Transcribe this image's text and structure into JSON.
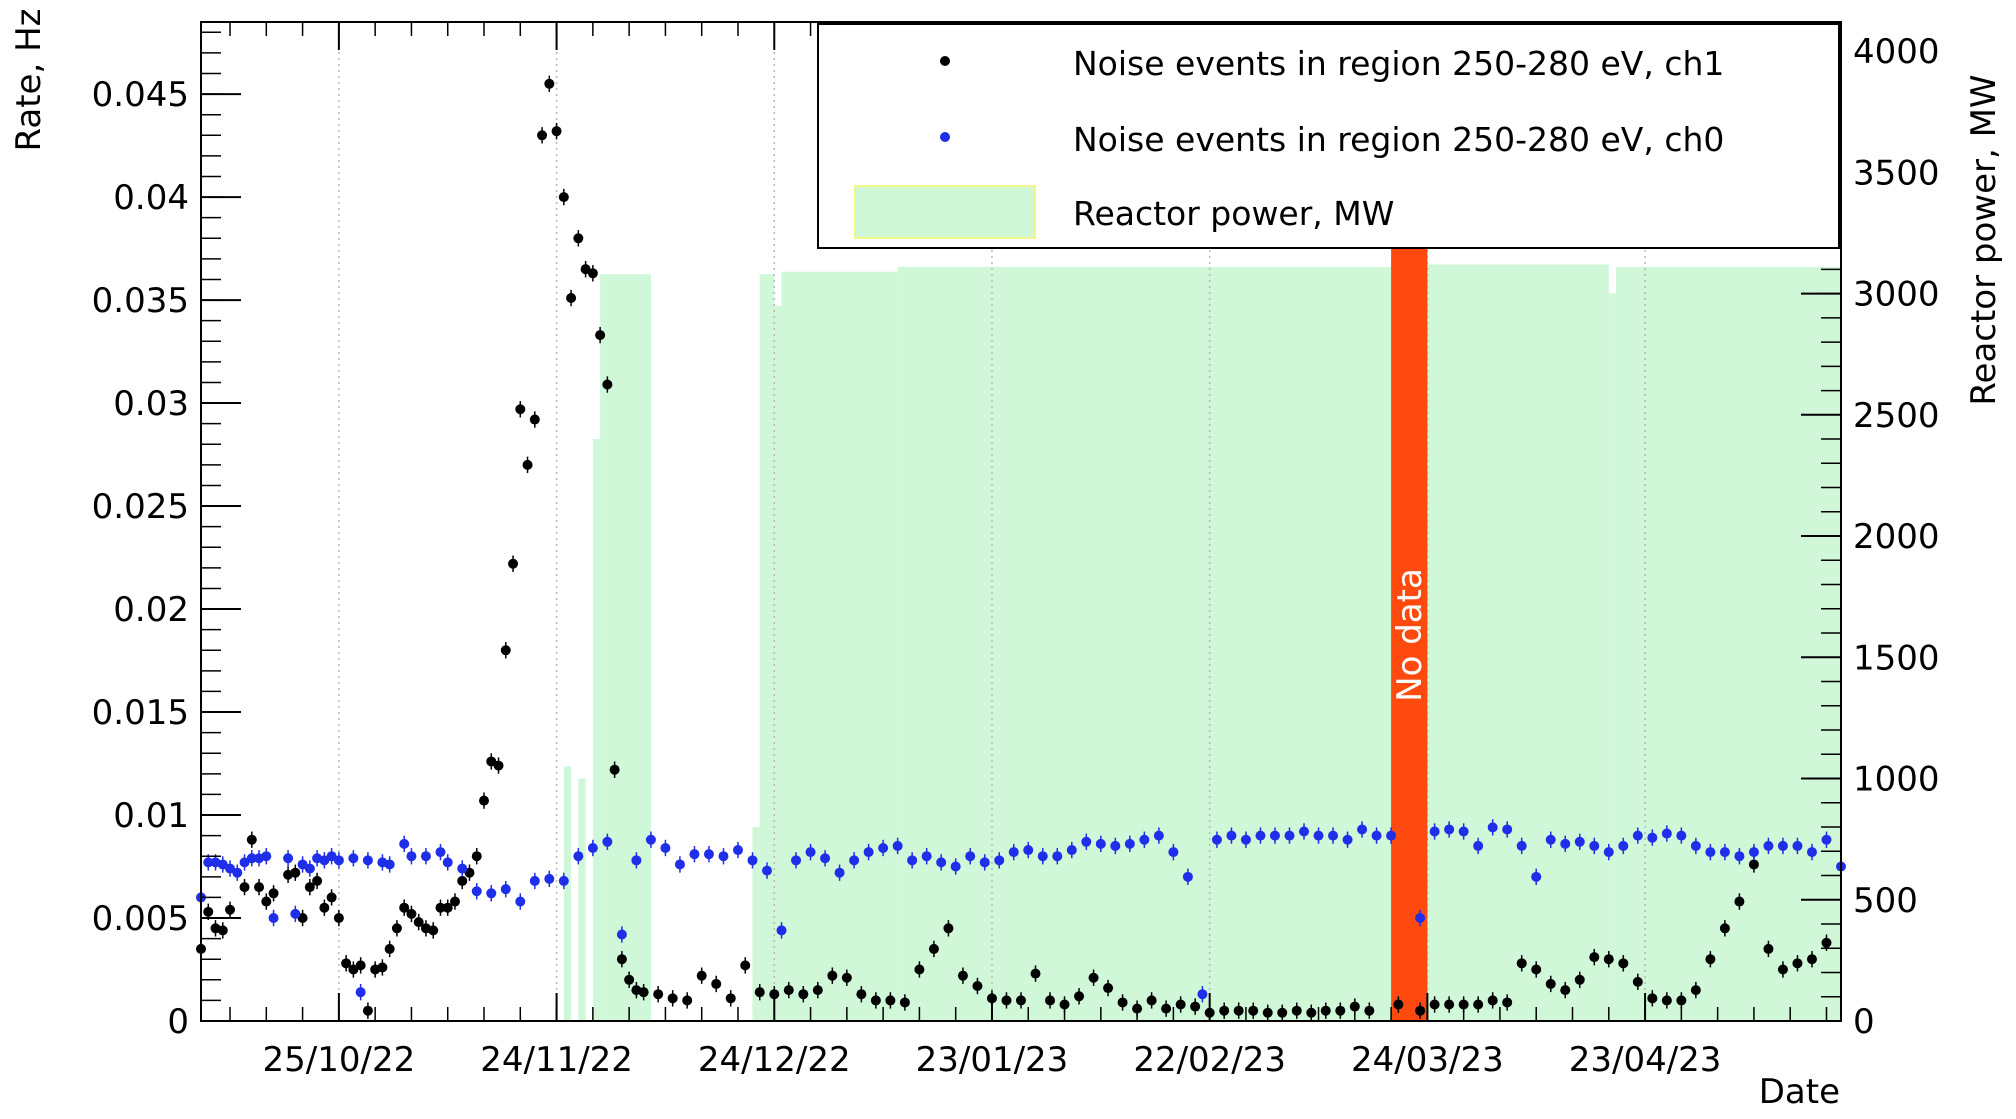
{
  "chart_data": {
    "type": "scatter",
    "xlabel": "Date",
    "ylabel": "Rate, Hz",
    "y2label": "Reactor power, MW",
    "x_range": [
      "2022-10-06",
      "2023-05-20"
    ],
    "ylim": [
      0,
      0.0485
    ],
    "y2lim": [
      0,
      4120
    ],
    "grid": "vertical",
    "legend_position": "top-right",
    "x_ticks": [
      {
        "date": "2022-10-25",
        "label": "25/10/22"
      },
      {
        "date": "2022-11-24",
        "label": "24/11/22"
      },
      {
        "date": "2022-12-24",
        "label": "24/12/22"
      },
      {
        "date": "2023-01-23",
        "label": "23/01/23"
      },
      {
        "date": "2023-02-22",
        "label": "22/02/23"
      },
      {
        "date": "2023-03-24",
        "label": "24/03/23"
      },
      {
        "date": "2023-04-23",
        "label": "23/04/23"
      }
    ],
    "y_ticks": [
      {
        "value": 0,
        "label": "0"
      },
      {
        "value": 0.005,
        "label": "0.005"
      },
      {
        "value": 0.01,
        "label": "0.01"
      },
      {
        "value": 0.015,
        "label": "0.015"
      },
      {
        "value": 0.02,
        "label": "0.02"
      },
      {
        "value": 0.025,
        "label": "0.025"
      },
      {
        "value": 0.03,
        "label": "0.03"
      },
      {
        "value": 0.035,
        "label": "0.035"
      },
      {
        "value": 0.04,
        "label": "0.04"
      },
      {
        "value": 0.045,
        "label": "0.045"
      }
    ],
    "y2_ticks": [
      {
        "value": 0,
        "label": "0"
      },
      {
        "value": 500,
        "label": "500"
      },
      {
        "value": 1000,
        "label": "1000"
      },
      {
        "value": 1500,
        "label": "1500"
      },
      {
        "value": 2000,
        "label": "2000"
      },
      {
        "value": 2500,
        "label": "2500"
      },
      {
        "value": 3000,
        "label": "3000"
      },
      {
        "value": 3500,
        "label": "3500"
      },
      {
        "value": 4000,
        "label": "4000"
      }
    ],
    "series": [
      {
        "name": "Noise events in region 250-280 eV, ch1",
        "color": "#000000",
        "x": [
          "2022-10-06",
          "2022-10-07",
          "2022-10-08",
          "2022-10-09",
          "2022-10-10",
          "2022-10-12",
          "2022-10-13",
          "2022-10-14",
          "2022-10-15",
          "2022-10-16",
          "2022-10-18",
          "2022-10-19",
          "2022-10-20",
          "2022-10-21",
          "2022-10-22",
          "2022-10-23",
          "2022-10-24",
          "2022-10-25",
          "2022-10-26",
          "2022-10-27",
          "2022-10-28",
          "2022-10-29",
          "2022-10-30",
          "2022-10-31",
          "2022-11-01",
          "2022-11-02",
          "2022-11-03",
          "2022-11-04",
          "2022-11-05",
          "2022-11-06",
          "2022-11-07",
          "2022-11-08",
          "2022-11-09",
          "2022-11-10",
          "2022-11-11",
          "2022-11-12",
          "2022-11-13",
          "2022-11-14",
          "2022-11-15",
          "2022-11-16",
          "2022-11-17",
          "2022-11-18",
          "2022-11-19",
          "2022-11-20",
          "2022-11-21",
          "2022-11-22",
          "2022-11-23",
          "2022-11-24",
          "2022-11-25",
          "2022-11-26",
          "2022-11-27",
          "2022-11-28",
          "2022-11-29",
          "2022-11-30",
          "2022-12-01",
          "2022-12-02",
          "2022-12-03",
          "2022-12-04",
          "2022-12-05",
          "2022-12-06",
          "2022-12-08",
          "2022-12-10",
          "2022-12-12",
          "2022-12-14",
          "2022-12-16",
          "2022-12-18",
          "2022-12-20",
          "2022-12-22",
          "2022-12-24",
          "2022-12-26",
          "2022-12-28",
          "2022-12-30",
          "2023-01-01",
          "2023-01-03",
          "2023-01-05",
          "2023-01-07",
          "2023-01-09",
          "2023-01-11",
          "2023-01-13",
          "2023-01-15",
          "2023-01-17",
          "2023-01-19",
          "2023-01-21",
          "2023-01-23",
          "2023-01-25",
          "2023-01-27",
          "2023-01-29",
          "2023-01-31",
          "2023-02-02",
          "2023-02-04",
          "2023-02-06",
          "2023-02-08",
          "2023-02-10",
          "2023-02-12",
          "2023-02-14",
          "2023-02-16",
          "2023-02-18",
          "2023-02-20",
          "2023-02-22",
          "2023-02-24",
          "2023-02-26",
          "2023-02-28",
          "2023-03-02",
          "2023-03-04",
          "2023-03-06",
          "2023-03-08",
          "2023-03-10",
          "2023-03-12",
          "2023-03-14",
          "2023-03-16",
          "2023-03-20",
          "2023-03-23",
          "2023-03-25",
          "2023-03-27",
          "2023-03-29",
          "2023-03-31",
          "2023-04-02",
          "2023-04-04",
          "2023-04-06",
          "2023-04-08",
          "2023-04-10",
          "2023-04-12",
          "2023-04-14",
          "2023-04-16",
          "2023-04-18",
          "2023-04-20",
          "2023-04-22",
          "2023-04-24",
          "2023-04-26",
          "2023-04-28",
          "2023-04-30",
          "2023-05-02",
          "2023-05-04",
          "2023-05-06",
          "2023-05-08",
          "2023-05-10",
          "2023-05-12",
          "2023-05-14",
          "2023-05-16",
          "2023-05-18"
        ],
        "y": [
          0.0035,
          0.0053,
          0.0045,
          0.0044,
          0.0054,
          0.0065,
          0.0088,
          0.0065,
          0.0058,
          0.0062,
          0.0071,
          0.0072,
          0.005,
          0.0065,
          0.0068,
          0.0055,
          0.006,
          0.005,
          0.0028,
          0.0025,
          0.0027,
          0.0005,
          0.0025,
          0.0026,
          0.0035,
          0.0045,
          0.0055,
          0.0052,
          0.0048,
          0.0045,
          0.0044,
          0.0055,
          0.0055,
          0.0058,
          0.0068,
          0.0072,
          0.008,
          0.0107,
          0.0126,
          0.0124,
          0.018,
          0.0222,
          0.0297,
          0.027,
          0.0292,
          0.043,
          0.0455,
          0.0432,
          0.04,
          0.0351,
          0.038,
          0.0365,
          0.0363,
          0.0333,
          0.0309,
          0.0122,
          0.003,
          0.002,
          0.0015,
          0.0014,
          0.0013,
          0.0011,
          0.001,
          0.0022,
          0.0018,
          0.0011,
          0.0027,
          0.0014,
          0.0013,
          0.0015,
          0.0013,
          0.0015,
          0.0022,
          0.0021,
          0.0013,
          0.001,
          0.001,
          0.0009,
          0.0025,
          0.0035,
          0.0045,
          0.0022,
          0.0017,
          0.0011,
          0.001,
          0.001,
          0.0023,
          0.001,
          0.0008,
          0.0012,
          0.0021,
          0.0016,
          0.0009,
          0.0006,
          0.001,
          0.0006,
          0.0008,
          0.0007,
          0.0004,
          0.0005,
          0.0005,
          0.0005,
          0.0004,
          0.0004,
          0.0005,
          0.0004,
          0.0005,
          0.0005,
          0.0007,
          0.0005,
          0.0008,
          0.0005,
          0.0008,
          0.0008,
          0.0008,
          0.0008,
          0.001,
          0.0009,
          0.0028,
          0.0025,
          0.0018,
          0.0015,
          0.002,
          0.0031,
          0.003,
          0.0028,
          0.0019,
          0.0011,
          0.001,
          0.001,
          0.0015,
          0.003,
          0.0045,
          0.0058,
          0.0076,
          0.0035,
          0.0025,
          0.0028,
          0.003,
          0.0038
        ],
        "yerr": 0.0003
      },
      {
        "name": "Noise events in region 250-280 eV, ch0",
        "color": "#1f2ee8",
        "x": [
          "2022-10-06",
          "2022-10-07",
          "2022-10-08",
          "2022-10-09",
          "2022-10-10",
          "2022-10-11",
          "2022-10-12",
          "2022-10-13",
          "2022-10-14",
          "2022-10-15",
          "2022-10-16",
          "2022-10-18",
          "2022-10-19",
          "2022-10-20",
          "2022-10-21",
          "2022-10-22",
          "2022-10-23",
          "2022-10-24",
          "2022-10-25",
          "2022-10-27",
          "2022-10-28",
          "2022-10-29",
          "2022-10-31",
          "2022-11-01",
          "2022-11-03",
          "2022-11-04",
          "2022-11-06",
          "2022-11-08",
          "2022-11-09",
          "2022-11-11",
          "2022-11-13",
          "2022-11-15",
          "2022-11-17",
          "2022-11-19",
          "2022-11-21",
          "2022-11-23",
          "2022-11-25",
          "2022-11-27",
          "2022-11-29",
          "2022-12-01",
          "2022-12-03",
          "2022-12-05",
          "2022-12-07",
          "2022-12-09",
          "2022-12-11",
          "2022-12-13",
          "2022-12-15",
          "2022-12-17",
          "2022-12-19",
          "2022-12-21",
          "2022-12-23",
          "2022-12-25",
          "2022-12-27",
          "2022-12-29",
          "2022-12-31",
          "2023-01-02",
          "2023-01-04",
          "2023-01-06",
          "2023-01-08",
          "2023-01-10",
          "2023-01-12",
          "2023-01-14",
          "2023-01-16",
          "2023-01-18",
          "2023-01-20",
          "2023-01-22",
          "2023-01-24",
          "2023-01-26",
          "2023-01-28",
          "2023-01-30",
          "2023-02-01",
          "2023-02-03",
          "2023-02-05",
          "2023-02-07",
          "2023-02-09",
          "2023-02-11",
          "2023-02-13",
          "2023-02-15",
          "2023-02-17",
          "2023-02-19",
          "2023-02-21",
          "2023-02-23",
          "2023-02-25",
          "2023-02-27",
          "2023-03-01",
          "2023-03-03",
          "2023-03-05",
          "2023-03-07",
          "2023-03-09",
          "2023-03-11",
          "2023-03-13",
          "2023-03-15",
          "2023-03-17",
          "2023-03-19",
          "2023-03-23",
          "2023-03-25",
          "2023-03-27",
          "2023-03-29",
          "2023-03-31",
          "2023-04-02",
          "2023-04-04",
          "2023-04-06",
          "2023-04-08",
          "2023-04-10",
          "2023-04-12",
          "2023-04-14",
          "2023-04-16",
          "2023-04-18",
          "2023-04-20",
          "2023-04-22",
          "2023-04-24",
          "2023-04-26",
          "2023-04-28",
          "2023-04-30",
          "2023-05-02",
          "2023-05-04",
          "2023-05-06",
          "2023-05-08",
          "2023-05-10",
          "2023-05-12",
          "2023-05-14",
          "2023-05-16",
          "2023-05-18",
          "2023-05-20"
        ],
        "y": [
          0.006,
          0.0077,
          0.0077,
          0.0076,
          0.0074,
          0.0072,
          0.0077,
          0.0079,
          0.0079,
          0.008,
          0.005,
          0.0079,
          0.0052,
          0.0076,
          0.0074,
          0.0079,
          0.0078,
          0.008,
          0.0078,
          0.0079,
          0.0014,
          0.0078,
          0.0077,
          0.0076,
          0.0086,
          0.008,
          0.008,
          0.0082,
          0.0077,
          0.0074,
          0.0063,
          0.0062,
          0.0064,
          0.0058,
          0.0068,
          0.0069,
          0.0068,
          0.008,
          0.0084,
          0.0087,
          0.0042,
          0.0078,
          0.0088,
          0.0084,
          0.0076,
          0.0081,
          0.0081,
          0.008,
          0.0083,
          0.0078,
          0.0073,
          0.0044,
          0.0078,
          0.0082,
          0.0079,
          0.0072,
          0.0078,
          0.0082,
          0.0084,
          0.0085,
          0.0078,
          0.008,
          0.0077,
          0.0075,
          0.008,
          0.0077,
          0.0078,
          0.0082,
          0.0083,
          0.008,
          0.008,
          0.0083,
          0.0087,
          0.0086,
          0.0085,
          0.0086,
          0.0088,
          0.009,
          0.0082,
          0.007,
          0.0013,
          0.0088,
          0.009,
          0.0088,
          0.009,
          0.009,
          0.009,
          0.0092,
          0.009,
          0.009,
          0.0088,
          0.0093,
          0.009,
          0.009,
          0.005,
          0.0092,
          0.0093,
          0.0092,
          0.0085,
          0.0094,
          0.0093,
          0.0085,
          0.007,
          0.0088,
          0.0086,
          0.0087,
          0.0085,
          0.0082,
          0.0085,
          0.009,
          0.0089,
          0.0091,
          0.009,
          0.0085,
          0.0082,
          0.0082,
          0.008,
          0.0082,
          0.0085,
          0.0085,
          0.0085,
          0.0082,
          0.0088,
          0.0075
        ],
        "yerr": 0.0003
      },
      {
        "name": "Reactor power, MW",
        "type": "area",
        "color": "#cff7d8",
        "axis": "right",
        "segments": [
          {
            "from": "2022-11-25",
            "to": "2022-11-26",
            "value": 1050
          },
          {
            "from": "2022-11-27",
            "to": "2022-11-28",
            "value": 1000
          },
          {
            "from": "2022-11-29",
            "to": "2022-11-30",
            "value": 2400
          },
          {
            "from": "2022-11-30",
            "to": "2022-12-07",
            "value": 3080
          },
          {
            "from": "2022-12-21",
            "to": "2022-12-22",
            "value": 800
          },
          {
            "from": "2022-12-22",
            "to": "2022-12-24",
            "value": 3080
          },
          {
            "from": "2022-12-24",
            "to": "2022-12-25",
            "value": 2950
          },
          {
            "from": "2022-12-25",
            "to": "2023-01-10",
            "value": 3090
          },
          {
            "from": "2023-01-10",
            "to": "2023-03-20",
            "value": 3110
          },
          {
            "from": "2023-03-20",
            "to": "2023-03-24",
            "value": 3100
          },
          {
            "from": "2023-03-24",
            "to": "2023-04-18",
            "value": 3120
          },
          {
            "from": "2023-04-18",
            "to": "2023-04-19",
            "value": 3000
          },
          {
            "from": "2023-04-19",
            "to": "2023-05-20",
            "value": 3110
          }
        ]
      }
    ],
    "annotations": [
      {
        "text": "No data",
        "from": "2023-03-19",
        "to": "2023-03-24",
        "color": "#ff4a0f"
      }
    ]
  }
}
